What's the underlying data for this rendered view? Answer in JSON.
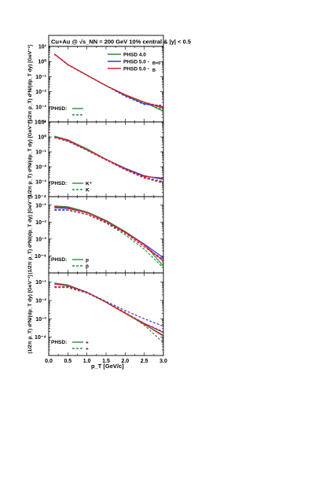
{
  "header": {
    "title": "Cu+Au @ √s_NN = 200 GeV 10% central & |y| < 0.5"
  },
  "legend_main": [
    {
      "label": "PHSD 4.0",
      "color": "#2e8b3e"
    },
    {
      "label": "PHSD 5.0 - ",
      "sub": "B=0",
      "color": "#3a3ad0"
    },
    {
      "label": "PHSD 5.0 - ",
      "sub": "B",
      "color": "#e02020"
    }
  ],
  "xaxis": {
    "label": "p_T [GeV/c]",
    "ticks": [
      "0.0",
      "0.5",
      "1.0",
      "1.5",
      "2.0",
      "2.5",
      "3.0"
    ]
  },
  "colors": {
    "green": "#2e8b3e",
    "blue": "#3a3ad0",
    "red": "#e02020"
  },
  "chart_data": [
    {
      "type": "line",
      "ylabel": "(1/2π p_T) d²N/(dp_T dy) [GeV⁻²]",
      "ylim_log10": [
        -4,
        1
      ],
      "yticks": [
        "10¹",
        "10⁰",
        "10⁻¹",
        "10⁻²",
        "10⁻³",
        "10⁻⁴"
      ],
      "panel_legend": {
        "prefix": "PHSD:",
        "entries": [
          {
            "label": "",
            "style": "solid"
          },
          {
            "label": "",
            "style": "dashed"
          }
        ]
      },
      "x": [
        0.15,
        0.5,
        1.0,
        1.5,
        2.0,
        2.5,
        3.0
      ],
      "series": [
        {
          "name": "PHSD 4.0",
          "color": "green",
          "style": "solid",
          "values": [
            0.5,
            -0.2,
            -0.9,
            -1.6,
            -2.2,
            -2.7,
            -3.3
          ]
        },
        {
          "name": "PHSD 5.0 - B=0",
          "color": "blue",
          "style": "solid",
          "values": [
            0.5,
            -0.2,
            -0.9,
            -1.6,
            -2.25,
            -2.8,
            -3.0
          ]
        },
        {
          "name": "PHSD 5.0 - B",
          "color": "red",
          "style": "solid",
          "values": [
            0.5,
            -0.2,
            -0.9,
            -1.6,
            -2.2,
            -2.7,
            -3.1
          ]
        },
        {
          "name": "",
          "color": "green",
          "style": "dashed",
          "values": [
            0.48,
            -0.22,
            -0.92,
            -1.62,
            -2.25,
            -2.75,
            -3.2
          ]
        },
        {
          "name": "",
          "color": "blue",
          "style": "dashed",
          "values": [
            0.48,
            -0.22,
            -0.9,
            -1.6,
            -2.3,
            -2.85,
            -2.9
          ]
        },
        {
          "name": "",
          "color": "red",
          "style": "dashed",
          "values": [
            0.48,
            -0.22,
            -0.92,
            -1.6,
            -2.2,
            -2.7,
            -3.0
          ]
        }
      ]
    },
    {
      "type": "line",
      "ylabel": "(1/2π p_T) d²N/(dp_T dy) [GeV⁻²]",
      "ylim_log10": [
        -4,
        1
      ],
      "yticks": [
        "10¹",
        "10⁰",
        "10⁻¹",
        "10⁻²",
        "10⁻³",
        "10⁻⁴"
      ],
      "panel_legend": {
        "prefix": "PHSD:",
        "entries": [
          {
            "label": "K⁺",
            "style": "solid"
          },
          {
            "label": "K",
            "style": "dashed"
          }
        ]
      },
      "x": [
        0.15,
        0.5,
        1.0,
        1.5,
        2.0,
        2.5,
        3.0
      ],
      "series": [
        {
          "name": "PHSD 4.0",
          "color": "green",
          "style": "solid",
          "values": [
            0.05,
            -0.2,
            -0.8,
            -1.5,
            -2.1,
            -2.65,
            -2.8
          ]
        },
        {
          "name": "PHSD 5.0 - B=0",
          "color": "blue",
          "style": "solid",
          "values": [
            0.0,
            -0.25,
            -0.85,
            -1.5,
            -2.1,
            -2.6,
            -2.85
          ]
        },
        {
          "name": "PHSD 5.0 - B",
          "color": "red",
          "style": "solid",
          "values": [
            0.0,
            -0.2,
            -0.85,
            -1.5,
            -2.15,
            -2.65,
            -2.75
          ]
        },
        {
          "name": "",
          "color": "green",
          "style": "dashed",
          "values": [
            0.0,
            -0.25,
            -0.85,
            -1.55,
            -2.2,
            -2.75,
            -3.1
          ]
        },
        {
          "name": "",
          "color": "blue",
          "style": "dashed",
          "values": [
            -0.05,
            -0.3,
            -0.9,
            -1.55,
            -2.15,
            -2.7,
            -3.0
          ]
        },
        {
          "name": "",
          "color": "red",
          "style": "dashed",
          "values": [
            -0.05,
            -0.25,
            -0.9,
            -1.55,
            -2.2,
            -2.75,
            -3.05
          ]
        }
      ]
    },
    {
      "type": "line",
      "ylabel": "(1/2π p_T) d²N/(dp_T dy) [GeV⁻²]",
      "ylim_log10": [
        -4,
        0.5
      ],
      "yticks": [
        "10⁰",
        "10⁻¹",
        "10⁻²",
        "10⁻³",
        "10⁻⁴"
      ],
      "panel_legend": {
        "prefix": "PHSD:",
        "entries": [
          {
            "label": "p",
            "style": "solid"
          },
          {
            "label": "p̄",
            "style": "dashed"
          }
        ]
      },
      "x": [
        0.15,
        0.5,
        1.0,
        1.5,
        2.0,
        2.5,
        3.0
      ],
      "series": [
        {
          "name": "PHSD 4.0",
          "color": "green",
          "style": "solid",
          "values": [
            -0.05,
            -0.1,
            -0.4,
            -0.9,
            -1.55,
            -2.3,
            -3.6
          ]
        },
        {
          "name": "PHSD 5.0 - B=0",
          "color": "blue",
          "style": "solid",
          "values": [
            -0.15,
            -0.2,
            -0.45,
            -0.95,
            -1.6,
            -2.3,
            -3.1
          ]
        },
        {
          "name": "PHSD 5.0 - B",
          "color": "red",
          "style": "solid",
          "values": [
            -0.1,
            -0.15,
            -0.45,
            -0.95,
            -1.6,
            -2.35,
            -3.3
          ]
        },
        {
          "name": "",
          "color": "green",
          "style": "dashed",
          "values": [
            -0.3,
            -0.3,
            -0.55,
            -1.05,
            -1.75,
            -2.6,
            -3.7
          ]
        },
        {
          "name": "",
          "color": "blue",
          "style": "dashed",
          "values": [
            -0.3,
            -0.3,
            -0.55,
            -1.05,
            -1.65,
            -2.45,
            -3.2
          ]
        },
        {
          "name": "",
          "color": "red",
          "style": "dashed",
          "values": [
            -0.25,
            -0.28,
            -0.55,
            -1.0,
            -1.65,
            -2.45,
            -3.3
          ]
        }
      ]
    },
    {
      "type": "line",
      "ylabel": "(1/2π p_T) d²N/(dp_T dy) [GeV⁻²]",
      "ylim_log10": [
        -4,
        0.5
      ],
      "yticks": [
        "10⁰",
        "10⁻¹",
        "10⁻²",
        "10⁻³",
        "10⁻⁴"
      ],
      "panel_legend": {
        "prefix": "PHSD:",
        "entries": [
          {
            "label": "+",
            "style": "solid"
          },
          {
            "label": "+",
            "style": "dashed"
          }
        ]
      },
      "x": [
        0.15,
        0.5,
        1.0,
        1.5,
        2.0,
        2.5,
        3.0
      ],
      "series": [
        {
          "name": "PHSD 4.0",
          "color": "green",
          "style": "solid",
          "values": [
            -0.05,
            -0.15,
            -0.55,
            -1.1,
            -1.7,
            -2.3,
            -2.9
          ]
        },
        {
          "name": "PHSD 5.0 - B=0",
          "color": "blue",
          "style": "solid",
          "values": [
            -0.1,
            -0.2,
            -0.55,
            -1.1,
            -1.7,
            -2.25,
            -2.75
          ]
        },
        {
          "name": "PHSD 5.0 - B",
          "color": "red",
          "style": "solid",
          "values": [
            -0.1,
            -0.2,
            -0.55,
            -1.1,
            -1.7,
            -2.3,
            -2.95
          ]
        },
        {
          "name": "",
          "color": "green",
          "style": "dashed",
          "values": [
            -0.3,
            -0.3,
            -0.6,
            -1.1,
            -1.65,
            -2.35,
            -3.3
          ]
        },
        {
          "name": "",
          "color": "blue",
          "style": "dashed",
          "values": [
            -0.25,
            -0.25,
            -0.55,
            -1.05,
            -1.55,
            -2.0,
            -2.4
          ]
        },
        {
          "name": "",
          "color": "red",
          "style": "dashed",
          "values": [
            -0.25,
            -0.28,
            -0.58,
            -1.08,
            -1.65,
            -2.25,
            -2.7
          ]
        }
      ]
    }
  ]
}
